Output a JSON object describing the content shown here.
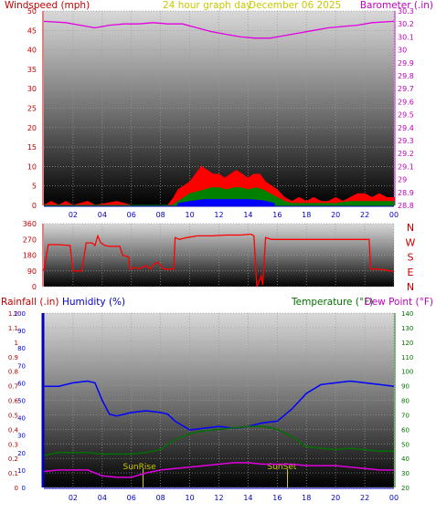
{
  "header": {
    "wind_label": "Windspeed (mph)",
    "period_label": "24 hour graph day",
    "date_label": "December 06 2025",
    "baro_label": "Barometer (.in)"
  },
  "footer": {
    "rain_label": "Rainfall (.in)",
    "humidity_label": "Humidity (%)",
    "temp_label": "Temperature (°F)",
    "dew_label": "Dew Point (°F)"
  },
  "colors": {
    "wind_gust": "#ff0000",
    "wind_avg": "#008000",
    "wind_calm": "#0000ff",
    "barometer": "#e000e0",
    "direction": "#ff0000",
    "humidity": "#0000ff",
    "temperature": "#007000",
    "dewpoint": "#e000e0",
    "sun_marker": "#d0d000",
    "red_text": "#c00000",
    "blue_text": "#0000c0",
    "green_text": "#007000",
    "magenta_text": "#c000c0",
    "yellow_text": "#c8c800"
  },
  "chart_data": [
    {
      "type": "line",
      "panel": "wind_barometer",
      "x_ticks": [
        "02",
        "04",
        "06",
        "08",
        "10",
        "12",
        "14",
        "16",
        "18",
        "20",
        "22",
        "00"
      ],
      "y_left": {
        "label": "Windspeed (mph)",
        "ticks": [
          0,
          5,
          10,
          15,
          20,
          25,
          30,
          35,
          40,
          45,
          50
        ],
        "range": [
          0,
          50
        ]
      },
      "y_right": {
        "label": "Barometer (.in)",
        "ticks": [
          "28.8",
          "28.9",
          "29",
          "29.1",
          "29.2",
          "29.3",
          "29.4",
          "29.5",
          "29.6",
          "29.7",
          "29.8",
          "29.9",
          "30",
          "30.1",
          "30.2",
          "30.3"
        ],
        "range": [
          28.8,
          30.3
        ]
      },
      "grid": true,
      "series": [
        {
          "name": "Barometer",
          "points": [
            [
              0,
              30.22
            ],
            [
              1.5,
              30.21
            ],
            [
              2.5,
              30.19
            ],
            [
              3.5,
              30.17
            ],
            [
              4.5,
              30.19
            ],
            [
              5.5,
              30.2
            ],
            [
              6.5,
              30.2
            ],
            [
              7.5,
              30.21
            ],
            [
              8.5,
              30.2
            ],
            [
              9.5,
              30.2
            ],
            [
              10.5,
              30.17
            ],
            [
              11.5,
              30.14
            ],
            [
              12.5,
              30.12
            ],
            [
              13.5,
              30.1
            ],
            [
              14.5,
              30.09
            ],
            [
              15.5,
              30.09
            ],
            [
              16.5,
              30.11
            ],
            [
              17.5,
              30.13
            ],
            [
              18.5,
              30.15
            ],
            [
              19.5,
              30.17
            ],
            [
              20.5,
              30.18
            ],
            [
              21.5,
              30.19
            ],
            [
              22.5,
              30.21
            ],
            [
              24,
              30.22
            ]
          ]
        },
        {
          "name": "Wind gust",
          "points": [
            [
              0,
              0
            ],
            [
              0.5,
              1
            ],
            [
              1,
              0
            ],
            [
              1.5,
              1
            ],
            [
              2,
              0
            ],
            [
              3,
              1
            ],
            [
              3.5,
              0
            ],
            [
              5,
              1
            ],
            [
              6,
              0
            ],
            [
              8.5,
              0
            ],
            [
              8.9,
              2
            ],
            [
              9.2,
              4
            ],
            [
              9.6,
              5
            ],
            [
              10,
              6
            ],
            [
              10.4,
              8
            ],
            [
              10.8,
              10
            ],
            [
              11.2,
              9
            ],
            [
              11.6,
              8
            ],
            [
              12,
              8
            ],
            [
              12.4,
              7
            ],
            [
              12.8,
              8
            ],
            [
              13.2,
              9
            ],
            [
              13.6,
              8
            ],
            [
              14,
              7
            ],
            [
              14.4,
              8
            ],
            [
              14.8,
              8
            ],
            [
              15.2,
              6
            ],
            [
              15.6,
              5
            ],
            [
              16,
              4
            ],
            [
              16.5,
              2
            ],
            [
              17,
              1
            ],
            [
              17.5,
              2
            ],
            [
              18,
              1
            ],
            [
              18.5,
              2
            ],
            [
              19,
              1
            ],
            [
              19.5,
              1
            ],
            [
              20,
              2
            ],
            [
              20.5,
              1
            ],
            [
              21,
              2
            ],
            [
              21.5,
              3
            ],
            [
              22,
              3
            ],
            [
              22.5,
              2
            ],
            [
              23,
              3
            ],
            [
              23.5,
              2
            ],
            [
              24,
              2
            ]
          ]
        },
        {
          "name": "Wind average",
          "points": [
            [
              0,
              0
            ],
            [
              8.8,
              0
            ],
            [
              9.2,
              1
            ],
            [
              9.6,
              2
            ],
            [
              10,
              3
            ],
            [
              10.5,
              3.5
            ],
            [
              11,
              4
            ],
            [
              11.5,
              4.5
            ],
            [
              12,
              4.5
            ],
            [
              12.5,
              4
            ],
            [
              13,
              4.5
            ],
            [
              13.5,
              4.5
            ],
            [
              14,
              4
            ],
            [
              14.5,
              4.5
            ],
            [
              15,
              4
            ],
            [
              15.5,
              3
            ],
            [
              16,
              2
            ],
            [
              16.5,
              1
            ],
            [
              17,
              0.5
            ],
            [
              18,
              0.5
            ],
            [
              19,
              0.5
            ],
            [
              20,
              0.5
            ],
            [
              21,
              1
            ],
            [
              22,
              1
            ],
            [
              23,
              1
            ],
            [
              24,
              1
            ]
          ]
        },
        {
          "name": "Wind calm",
          "points": [
            [
              9.2,
              0.5
            ],
            [
              10,
              1
            ],
            [
              11,
              1.5
            ],
            [
              12,
              1.5
            ],
            [
              13,
              1.5
            ],
            [
              14,
              1.5
            ],
            [
              15,
              1.2
            ],
            [
              15.8,
              0.5
            ]
          ]
        }
      ]
    },
    {
      "type": "line",
      "panel": "wind_direction",
      "x_ticks": [],
      "y_left": {
        "ticks": [
          0,
          90,
          180,
          270,
          360
        ],
        "range": [
          0,
          360
        ]
      },
      "y_right_labels": [
        "N",
        "W",
        "S",
        "E",
        "N"
      ],
      "grid": true,
      "series": [
        {
          "name": "Direction",
          "points": [
            [
              0,
              90
            ],
            [
              0.3,
              240
            ],
            [
              1,
              240
            ],
            [
              1.8,
              235
            ],
            [
              2,
              90
            ],
            [
              2.6,
              90
            ],
            [
              2.9,
              250
            ],
            [
              3.3,
              250
            ],
            [
              3.5,
              235
            ],
            [
              3.7,
              290
            ],
            [
              3.9,
              250
            ],
            [
              4.2,
              235
            ],
            [
              4.5,
              230
            ],
            [
              5.2,
              230
            ],
            [
              5.4,
              180
            ],
            [
              5.8,
              170
            ],
            [
              5.9,
              100
            ],
            [
              6.3,
              110
            ],
            [
              6.5,
              100
            ],
            [
              7,
              120
            ],
            [
              7.3,
              100
            ],
            [
              7.5,
              125
            ],
            [
              7.8,
              140
            ],
            [
              8.2,
              100
            ],
            [
              8.5,
              100
            ],
            [
              8.9,
              100
            ],
            [
              9,
              280
            ],
            [
              9.3,
              270
            ],
            [
              9.8,
              280
            ],
            [
              10.5,
              290
            ],
            [
              11.5,
              290
            ],
            [
              12.5,
              295
            ],
            [
              13.5,
              295
            ],
            [
              14.2,
              300
            ],
            [
              14.4,
              290
            ],
            [
              14.6,
              0
            ],
            [
              14.9,
              60
            ],
            [
              15,
              10
            ],
            [
              15.2,
              280
            ],
            [
              15.6,
              270
            ],
            [
              16,
              270
            ],
            [
              17,
              270
            ],
            [
              18,
              270
            ],
            [
              19,
              270
            ],
            [
              20,
              270
            ],
            [
              21,
              270
            ],
            [
              22.3,
              270
            ],
            [
              22.4,
              100
            ],
            [
              23,
              100
            ],
            [
              23.8,
              90
            ],
            [
              24,
              85
            ]
          ]
        }
      ]
    },
    {
      "type": "line",
      "panel": "temp_humidity",
      "x_ticks": [
        "02",
        "04",
        "06",
        "08",
        "10",
        "12",
        "14",
        "16",
        "18",
        "20",
        "22",
        "00"
      ],
      "y_left_outer": {
        "label": "Rainfall (.in)",
        "ticks": [
          "0",
          "0.1",
          "0.2",
          "0.3",
          "0.4",
          "0.5",
          "0.6",
          "0.7",
          "0.8",
          "0.9",
          "1",
          "1.1",
          "1.2"
        ],
        "range": [
          0,
          1.2
        ]
      },
      "y_left_inner": {
        "label": "Humidity (%)",
        "ticks": [
          0,
          10,
          20,
          30,
          40,
          50,
          60,
          70,
          80,
          90,
          100
        ],
        "range": [
          0,
          100
        ]
      },
      "y_right": {
        "label": "Temperature (°F) Dew Point (°F)",
        "ticks": [
          20,
          30,
          40,
          50,
          60,
          70,
          80,
          90,
          100,
          110,
          120,
          130,
          140
        ],
        "range": [
          20,
          140
        ]
      },
      "grid": true,
      "annotations": [
        {
          "text": "SunRise",
          "x": 6.8
        },
        {
          "text": "SunSet",
          "x": 16.7
        }
      ],
      "series": [
        {
          "name": "Humidity",
          "axis": "humidity",
          "points": [
            [
              0,
              58
            ],
            [
              1,
              58
            ],
            [
              2,
              60
            ],
            [
              3,
              61
            ],
            [
              3.5,
              60
            ],
            [
              4,
              50
            ],
            [
              4.5,
              42
            ],
            [
              5,
              41
            ],
            [
              6,
              43
            ],
            [
              7,
              44
            ],
            [
              8,
              43
            ],
            [
              8.5,
              42
            ],
            [
              9,
              38
            ],
            [
              10,
              33
            ],
            [
              11,
              34
            ],
            [
              12,
              35
            ],
            [
              13,
              34
            ],
            [
              14,
              35
            ],
            [
              15,
              37
            ],
            [
              16,
              38
            ],
            [
              17,
              45
            ],
            [
              18,
              54
            ],
            [
              19,
              59
            ],
            [
              20,
              60
            ],
            [
              21,
              61
            ],
            [
              22,
              60
            ],
            [
              23,
              59
            ],
            [
              24,
              58
            ]
          ]
        },
        {
          "name": "Temperature",
          "axis": "temperature",
          "points": [
            [
              0,
              42
            ],
            [
              1,
              44
            ],
            [
              2,
              44
            ],
            [
              3,
              44
            ],
            [
              4,
              43
            ],
            [
              5,
              43
            ],
            [
              6,
              43
            ],
            [
              7,
              44
            ],
            [
              8,
              46
            ],
            [
              9,
              53
            ],
            [
              10,
              57
            ],
            [
              11,
              59
            ],
            [
              12,
              60
            ],
            [
              13,
              61
            ],
            [
              14,
              62
            ],
            [
              15,
              62
            ],
            [
              16,
              60
            ],
            [
              17,
              55
            ],
            [
              18,
              48
            ],
            [
              19,
              47
            ],
            [
              20,
              46
            ],
            [
              21,
              47
            ],
            [
              22,
              46
            ],
            [
              23,
              45
            ],
            [
              24,
              45
            ]
          ]
        },
        {
          "name": "Dew Point",
          "axis": "temperature",
          "points": [
            [
              0,
              31
            ],
            [
              1,
              32
            ],
            [
              2,
              32
            ],
            [
              3,
              32
            ],
            [
              4,
              28
            ],
            [
              5,
              27
            ],
            [
              6,
              27
            ],
            [
              7,
              30
            ],
            [
              8,
              32
            ],
            [
              9,
              33
            ],
            [
              10,
              34
            ],
            [
              11,
              35
            ],
            [
              12,
              36
            ],
            [
              13,
              37
            ],
            [
              14,
              37
            ],
            [
              15,
              36
            ],
            [
              16,
              36
            ],
            [
              17,
              36
            ],
            [
              18,
              35
            ],
            [
              19,
              35
            ],
            [
              20,
              35
            ],
            [
              21,
              34
            ],
            [
              22,
              33
            ],
            [
              23,
              32
            ],
            [
              24,
              32
            ]
          ]
        }
      ]
    }
  ]
}
